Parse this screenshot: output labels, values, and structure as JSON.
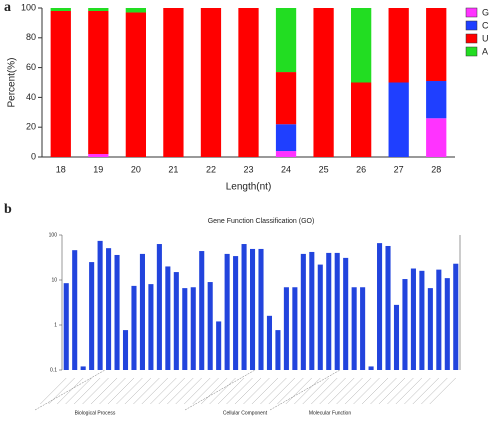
{
  "panel_labels": [
    "a",
    "b"
  ],
  "chart_data": [
    {
      "type": "stacked_bar",
      "categories": [
        "18",
        "19",
        "20",
        "21",
        "22",
        "23",
        "24",
        "25",
        "26",
        "27",
        "28"
      ],
      "series": [
        {
          "name": "G",
          "color": "#ff33ff",
          "values": [
            0,
            2,
            0,
            0,
            0,
            0,
            4,
            0,
            0,
            0,
            26
          ]
        },
        {
          "name": "C",
          "color": "#1f3fff",
          "values": [
            0,
            0,
            0,
            0,
            0,
            0,
            18,
            0,
            0,
            50,
            25
          ]
        },
        {
          "name": "U",
          "color": "#ff0000",
          "values": [
            98,
            96,
            97,
            100,
            100,
            100,
            35,
            100,
            50,
            50,
            49
          ]
        },
        {
          "name": "A",
          "color": "#22dd22",
          "values": [
            2,
            2,
            3,
            0,
            0,
            0,
            43,
            0,
            50,
            0,
            0
          ]
        }
      ],
      "ylim": [
        0,
        100
      ],
      "yticks": [
        0,
        20,
        40,
        60,
        80,
        100
      ],
      "ylabel": "Percent(%)",
      "xlabel": "Length(nt)",
      "legend": "right"
    },
    {
      "type": "bar",
      "title": "Gene Function Classification (GO)",
      "log_scale": true,
      "color": "#2244dd",
      "values": [
        8.5,
        46,
        0.12,
        25,
        74,
        51,
        36,
        0.77,
        7.4,
        38,
        8.1,
        63,
        20,
        15,
        6.6,
        6.9,
        44,
        9,
        1.2,
        38,
        34,
        63,
        49,
        49,
        1.6,
        0.77,
        6.9,
        6.9,
        38,
        42,
        22,
        40,
        40,
        31,
        6.9,
        6.9,
        0.12,
        66,
        57,
        2.8,
        10.5,
        18,
        16,
        6.6,
        17,
        11,
        23
      ],
      "ylim": [
        0.1,
        100
      ],
      "yticks": [
        0.1,
        1,
        10,
        100
      ],
      "groups": [
        "Biological Process",
        "Cellular Component",
        "Molecular Function"
      ]
    }
  ]
}
